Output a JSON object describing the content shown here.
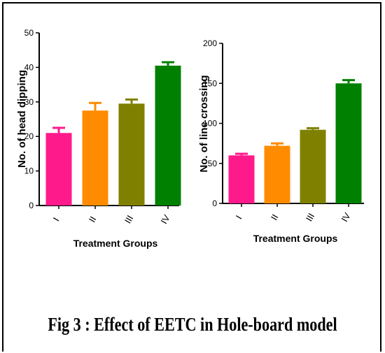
{
  "caption": "Fig 3 : Effect of EETC in Hole-board model",
  "colors": [
    "#ff1a8c",
    "#ff8c00",
    "#808000",
    "#008000"
  ],
  "chart_data": [
    {
      "type": "bar",
      "title": "",
      "xlabel": "Treatment Groups",
      "ylabel": "No. of head dipping",
      "categories": [
        "I",
        "II",
        "III",
        "IV"
      ],
      "values": [
        21,
        27.5,
        29.5,
        40.5
      ],
      "errors": [
        1.5,
        2.2,
        1.2,
        1.0
      ],
      "ylim": [
        0,
        50
      ],
      "yticks": [
        "0",
        "10",
        "20",
        "30",
        "40",
        "50"
      ],
      "grid": false
    },
    {
      "type": "bar",
      "title": "",
      "xlabel": "Treatment Groups",
      "ylabel": "No. of line crossing",
      "categories": [
        "I",
        "II",
        "III",
        "IV"
      ],
      "values": [
        60,
        72,
        92,
        150
      ],
      "errors": [
        2,
        3,
        2,
        4
      ],
      "ylim": [
        0,
        200
      ],
      "yticks": [
        "0",
        "50",
        "100",
        "150",
        "200"
      ],
      "grid": false
    }
  ]
}
